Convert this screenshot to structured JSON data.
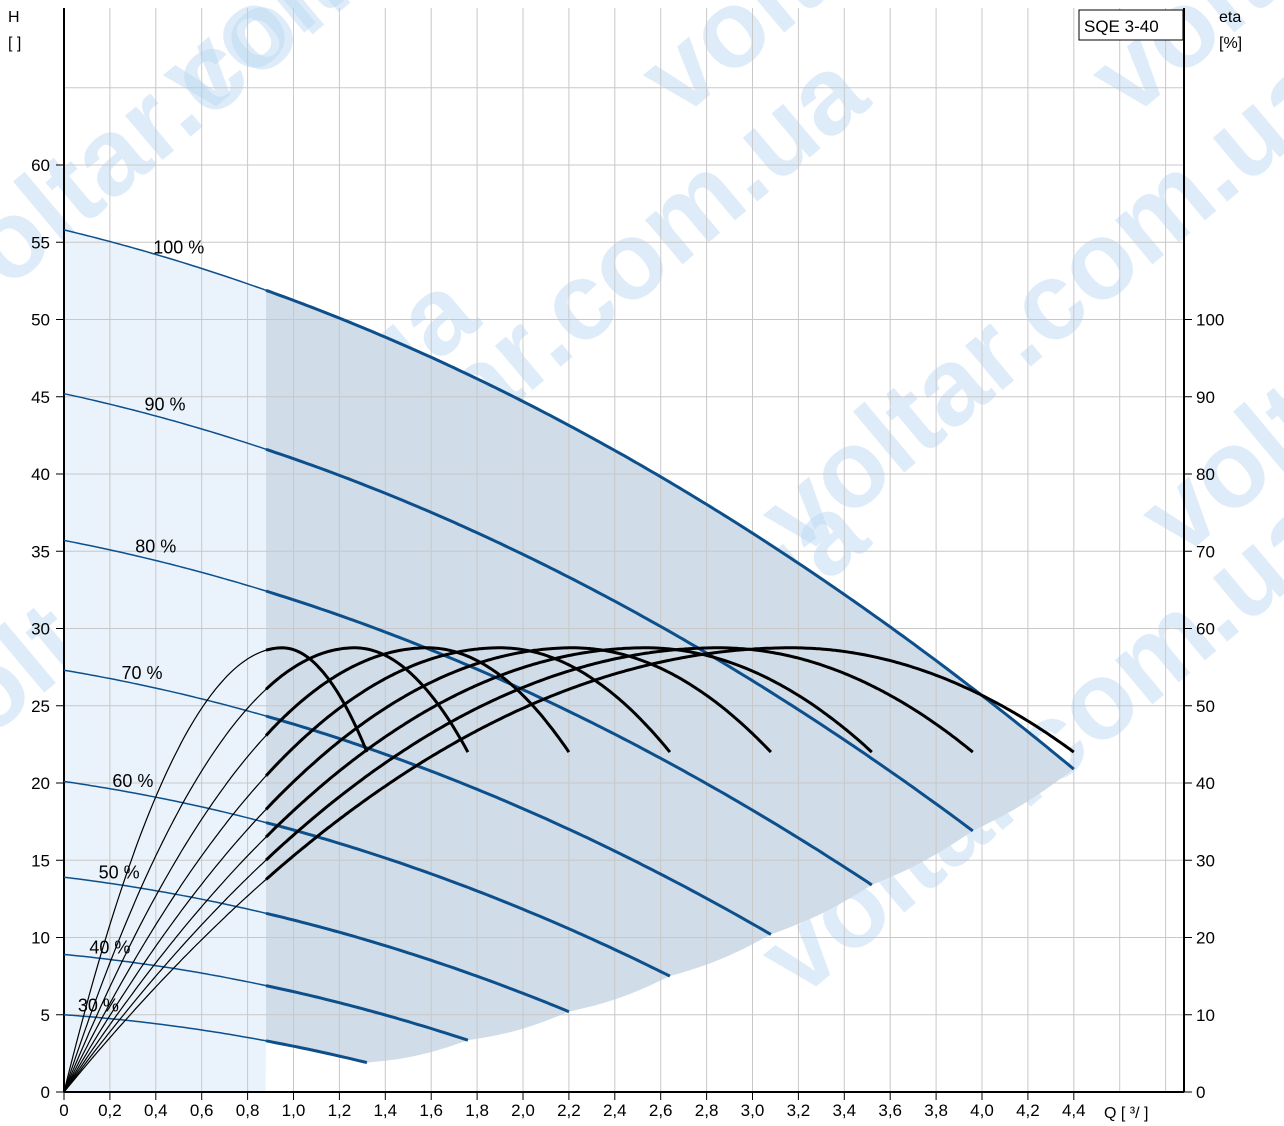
{
  "chart_data": {
    "type": "line",
    "model": "SQE 3-40",
    "xlabel": "Q [ ³/ ]",
    "ylabel_left_top": "H",
    "ylabel_left_unit": "[ ]",
    "ylabel_right_top": "eta",
    "ylabel_right_unit": "[%]",
    "xlim": [
      0,
      4.8
    ],
    "ylim": [
      0,
      70
    ],
    "eta_lim": [
      0,
      140
    ],
    "x_ticks": [
      "0",
      "0,2",
      "0,4",
      "0,6",
      "0,8",
      "1,0",
      "1,2",
      "1,4",
      "1,6",
      "1,8",
      "2,0",
      "2,2",
      "2,4",
      "2,6",
      "2,8",
      "3,0",
      "3,2",
      "3,4",
      "3,6",
      "3,8",
      "4,0",
      "4,2",
      "4,4"
    ],
    "y_ticks": [
      "0",
      "5",
      "10",
      "15",
      "20",
      "25",
      "30",
      "35",
      "40",
      "45",
      "50",
      "55",
      "60"
    ],
    "eta_ticks": [
      "0",
      "10",
      "20",
      "30",
      "40",
      "50",
      "60",
      "70",
      "80",
      "90",
      "100"
    ],
    "watermark": "voltar.com.ua",
    "speed_curves": [
      {
        "label": "100 %",
        "h0": 55.8,
        "qmax": 4.4,
        "h_end": 20.9
      },
      {
        "label": "90 %",
        "h0": 45.2,
        "qmax": 3.96,
        "h_end": 16.9
      },
      {
        "label": "80 %",
        "h0": 35.7,
        "qmax": 3.52,
        "h_end": 13.4
      },
      {
        "label": "70 %",
        "h0": 27.3,
        "qmax": 3.08,
        "h_end": 10.2
      },
      {
        "label": "60 %",
        "h0": 20.1,
        "qmax": 2.64,
        "h_end": 7.5
      },
      {
        "label": "50 %",
        "h0": 13.9,
        "qmax": 2.2,
        "h_end": 5.2
      },
      {
        "label": "40 %",
        "h0": 8.9,
        "qmax": 1.76,
        "h_end": 3.35
      },
      {
        "label": "30 %",
        "h0": 5.0,
        "qmax": 1.32,
        "h_end": 1.9
      }
    ],
    "eta_curves": [
      {
        "qmax": 1.32,
        "eta_peak": 57.5,
        "eta_end": 44
      },
      {
        "qmax": 1.76,
        "eta_peak": 57.5,
        "eta_end": 44
      },
      {
        "qmax": 2.2,
        "eta_peak": 57.5,
        "eta_end": 44
      },
      {
        "qmax": 2.64,
        "eta_peak": 57.5,
        "eta_end": 44
      },
      {
        "qmax": 3.08,
        "eta_peak": 57.5,
        "eta_end": 44
      },
      {
        "qmax": 3.52,
        "eta_peak": 57.5,
        "eta_end": 44
      },
      {
        "qmax": 3.96,
        "eta_peak": 57.5,
        "eta_end": 44
      },
      {
        "qmax": 4.4,
        "eta_peak": 57.5,
        "eta_end": 44
      }
    ],
    "min_flow": 0.88,
    "colors": {
      "h_curve": "#0d4f8b",
      "eta_curve": "#000000",
      "shade_main": "#d0dce8",
      "shade_low": "#eaf3fb",
      "grid": "#c8c8c8"
    }
  }
}
